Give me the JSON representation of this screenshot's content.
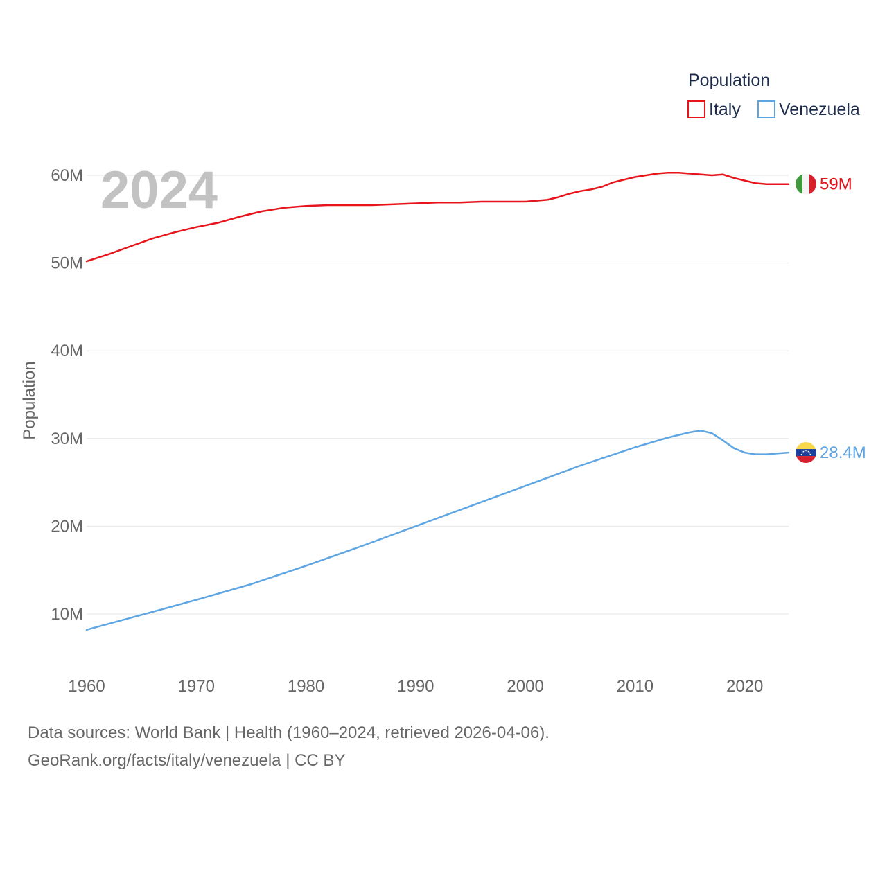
{
  "chart_data": {
    "type": "line",
    "xlabel": "",
    "ylabel": "Population",
    "xlim": [
      1960,
      2024
    ],
    "ylim": [
      5000000,
      63000000
    ],
    "x_ticks": [
      1960,
      1970,
      1980,
      1990,
      2000,
      2010,
      2020
    ],
    "y_ticks": [
      10000000,
      20000000,
      30000000,
      40000000,
      50000000,
      60000000
    ],
    "y_tick_labels": [
      "10M",
      "20M",
      "30M",
      "40M",
      "50M",
      "60M"
    ],
    "grid": true,
    "year_label": "2024",
    "legend": {
      "title": "Population",
      "position": "top-right"
    },
    "series": [
      {
        "name": "Italy",
        "color": "#e8141c",
        "end_label": "59M",
        "flag": "italy-flag",
        "x": [
          1960,
          1962,
          1964,
          1966,
          1968,
          1970,
          1972,
          1974,
          1976,
          1978,
          1980,
          1982,
          1984,
          1986,
          1988,
          1990,
          1992,
          1994,
          1996,
          1998,
          2000,
          2002,
          2003,
          2004,
          2005,
          2006,
          2007,
          2008,
          2010,
          2012,
          2013,
          2014,
          2015,
          2016,
          2017,
          2018,
          2019,
          2020,
          2021,
          2022,
          2023,
          2024
        ],
        "values": [
          50200000,
          51000000,
          51900000,
          52800000,
          53500000,
          54100000,
          54600000,
          55300000,
          55900000,
          56300000,
          56500000,
          56600000,
          56600000,
          56600000,
          56700000,
          56800000,
          56900000,
          56900000,
          57000000,
          57000000,
          57000000,
          57200000,
          57500000,
          57900000,
          58200000,
          58400000,
          58700000,
          59200000,
          59800000,
          60200000,
          60300000,
          60300000,
          60200000,
          60100000,
          60000000,
          60100000,
          59700000,
          59400000,
          59100000,
          59000000,
          59000000,
          59000000
        ]
      },
      {
        "name": "Venezuela",
        "color": "#5ea5e3",
        "end_label": "28.4M",
        "flag": "venezuela-flag",
        "x": [
          1960,
          1965,
          1970,
          1975,
          1980,
          1985,
          1990,
          1995,
          2000,
          2005,
          2010,
          2013,
          2015,
          2016,
          2017,
          2018,
          2019,
          2020,
          2021,
          2022,
          2023,
          2024
        ],
        "values": [
          8200000,
          9900000,
          11600000,
          13400000,
          15500000,
          17700000,
          20000000,
          22300000,
          24600000,
          26900000,
          29000000,
          30100000,
          30700000,
          30900000,
          30600000,
          29800000,
          28900000,
          28400000,
          28200000,
          28200000,
          28300000,
          28400000
        ]
      }
    ]
  },
  "footer": {
    "line1": "Data sources: World Bank | Health (1960–2024, retrieved 2026-04-06).",
    "line2": "GeoRank.org/facts/italy/venezuela | CC BY"
  }
}
